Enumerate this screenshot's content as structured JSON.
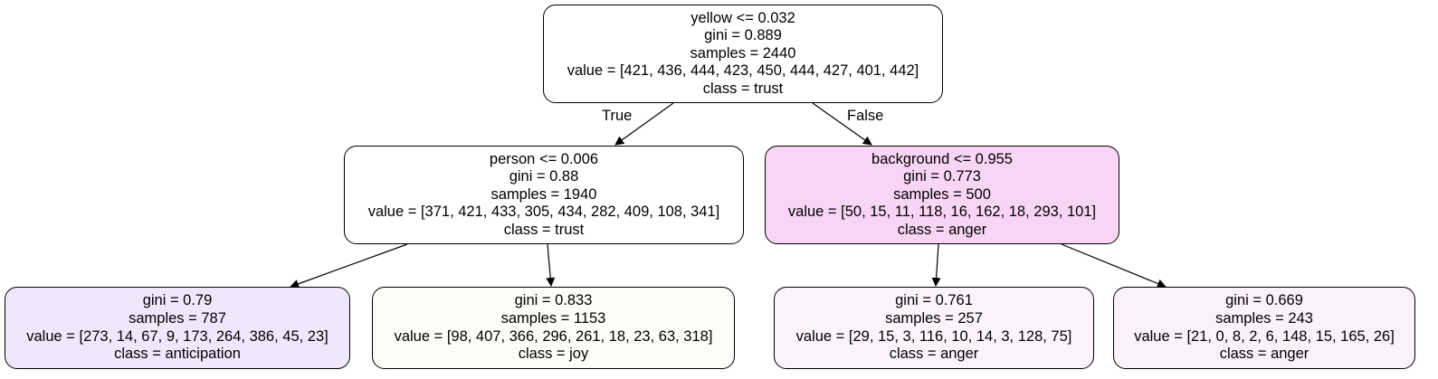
{
  "tree": {
    "nodes": [
      {
        "id": "root",
        "fill": "#ffffff",
        "lines": [
          "yellow <= 0.032",
          "gini = 0.889",
          "samples = 2440",
          "value = [421, 436, 444, 423, 450, 444, 427, 401, 442]",
          "class = trust"
        ]
      },
      {
        "id": "person-split",
        "fill": "#ffffff",
        "lines": [
          "person <= 0.006",
          "gini = 0.88",
          "samples = 1940",
          "value = [371, 421, 433, 305, 434, 282, 409, 108, 341]",
          "class = trust"
        ]
      },
      {
        "id": "background-split",
        "fill": "#f8d5f4",
        "lines": [
          "background <= 0.955",
          "gini = 0.773",
          "samples = 500",
          "value = [50, 15, 11, 118, 16, 162, 18, 293, 101]",
          "class = anger"
        ]
      },
      {
        "id": "leaf-anticipation",
        "fill": "#efe8fc",
        "lines": [
          "gini = 0.79",
          "samples = 787",
          "value = [273, 14, 67, 9, 173, 264, 386, 45, 23]",
          "class = anticipation"
        ]
      },
      {
        "id": "leaf-joy",
        "fill": "#fcfdf8",
        "lines": [
          "gini = 0.833",
          "samples = 1153",
          "value = [98, 407, 366, 296, 261, 18, 23, 63, 318]",
          "class = joy"
        ]
      },
      {
        "id": "leaf-anger-257",
        "fill": "#fcf3fb",
        "lines": [
          "gini = 0.761",
          "samples = 257",
          "value = [29, 15, 3, 116, 10, 14, 3, 128, 75]",
          "class = anger"
        ]
      },
      {
        "id": "leaf-anger-243",
        "fill": "#fcf0fb",
        "lines": [
          "gini = 0.669",
          "samples = 243",
          "value = [21, 0, 8, 2, 6, 148, 15, 165, 26]",
          "class = anger"
        ]
      }
    ],
    "edges": [
      {
        "from": "root",
        "to": "person-split",
        "label": "True"
      },
      {
        "from": "root",
        "to": "background-split",
        "label": "False"
      },
      {
        "from": "person-split",
        "to": "leaf-anticipation",
        "label": ""
      },
      {
        "from": "person-split",
        "to": "leaf-joy",
        "label": ""
      },
      {
        "from": "background-split",
        "to": "leaf-anger-257",
        "label": ""
      },
      {
        "from": "background-split",
        "to": "leaf-anger-243",
        "label": ""
      }
    ]
  }
}
